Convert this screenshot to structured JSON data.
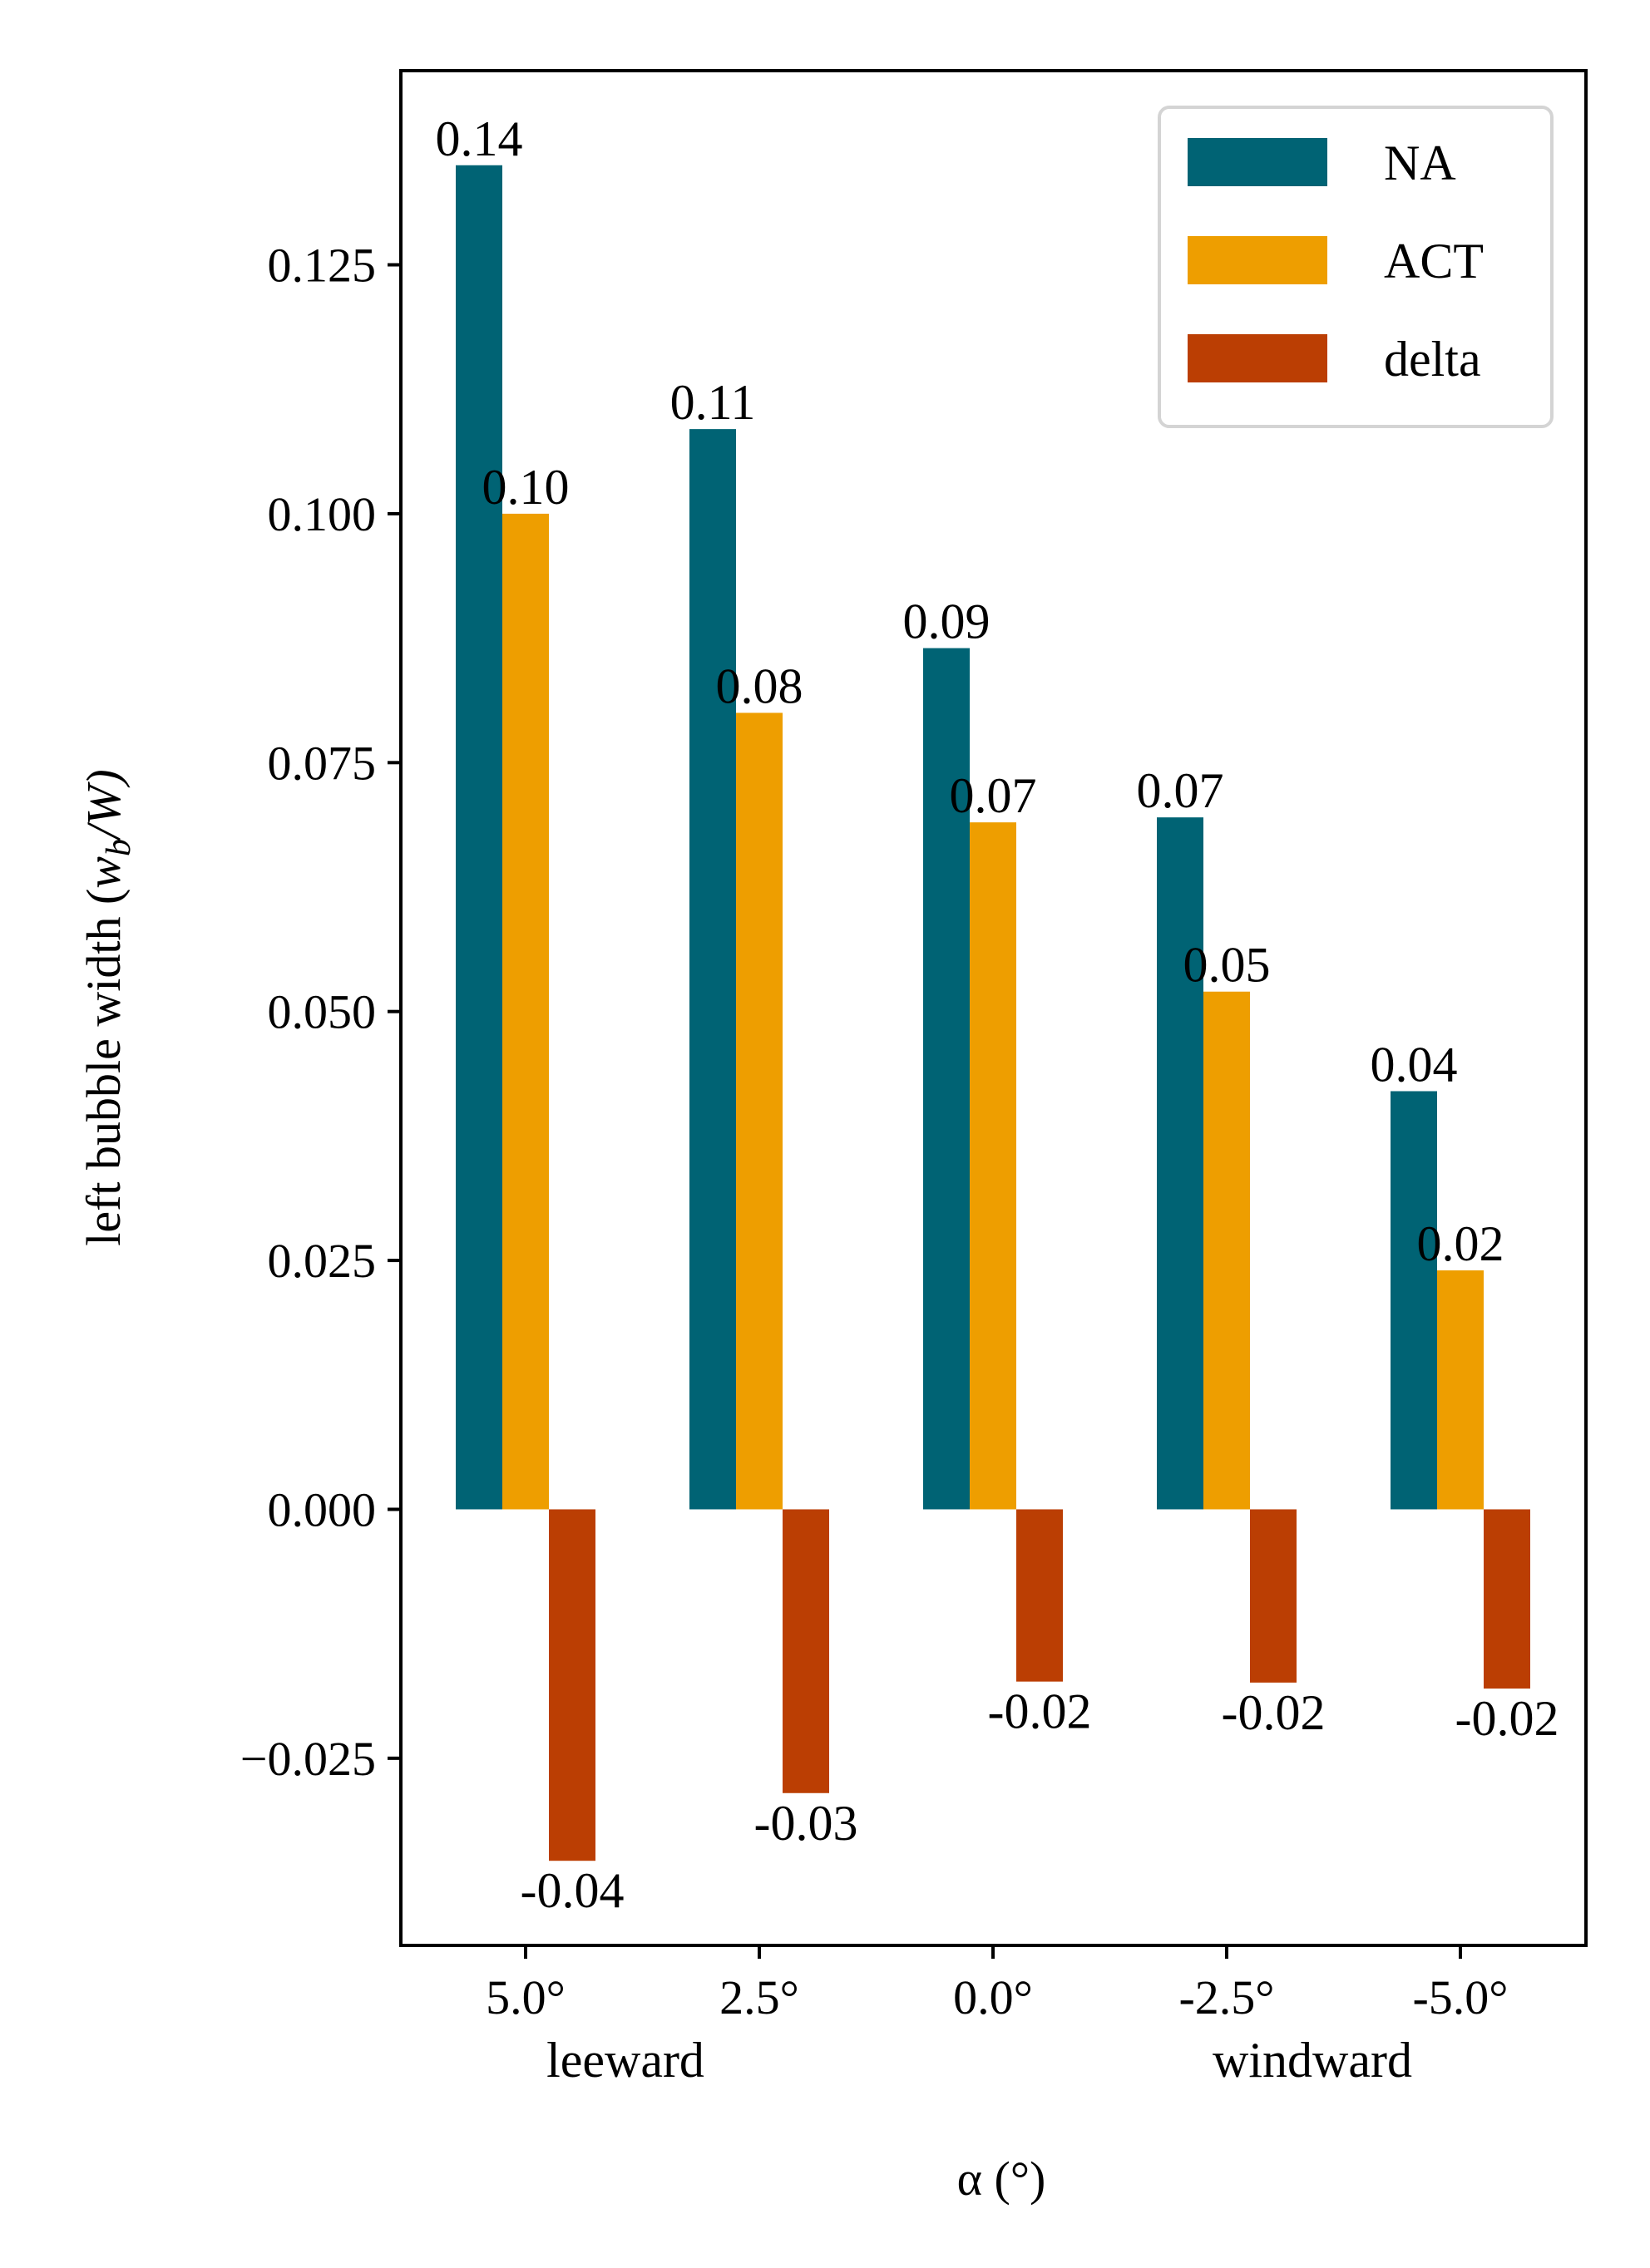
{
  "chart_data": {
    "type": "bar",
    "title": "",
    "xlabel": "α (°)",
    "ylabel_prefix": "left bubble width (",
    "ylabel_w": "w",
    "ylabel_sub": "b",
    "ylabel_suffix": "/W)",
    "categories": [
      "5.0°",
      "2.5°",
      "0.0°",
      "-2.5°",
      "-5.0°"
    ],
    "category_sublabels": [
      {
        "category_index": 0,
        "text": "leeward"
      },
      {
        "category_index": 3,
        "text": "windward"
      }
    ],
    "series": [
      {
        "name": "NA",
        "color": "#006374",
        "values": [
          0.135,
          0.1085,
          0.0865,
          0.0695,
          0.042
        ],
        "labels": [
          "0.14",
          "0.11",
          "0.09",
          "0.07",
          "0.04"
        ]
      },
      {
        "name": "ACT",
        "color": "#ee9e00",
        "values": [
          0.1,
          0.08,
          0.069,
          0.052,
          0.024
        ],
        "labels": [
          "0.10",
          "0.08",
          "0.07",
          "0.05",
          "0.02"
        ]
      },
      {
        "name": "delta",
        "color": "#bb3e03",
        "values": [
          -0.0353,
          -0.0285,
          -0.0173,
          -0.0174,
          -0.018
        ],
        "labels": [
          "-0.04",
          "-0.03",
          "-0.02",
          "-0.02",
          "-0.02"
        ]
      }
    ],
    "yticks": [
      -0.025,
      0.0,
      0.025,
      0.05,
      0.075,
      0.1,
      0.125
    ],
    "ytick_labels": [
      "−0.025",
      "0.000",
      "0.025",
      "0.050",
      "0.075",
      "0.100",
      "0.125"
    ],
    "ylim": [
      -0.0438,
      0.1445
    ],
    "legend_position": "top-right",
    "grid": false
  }
}
